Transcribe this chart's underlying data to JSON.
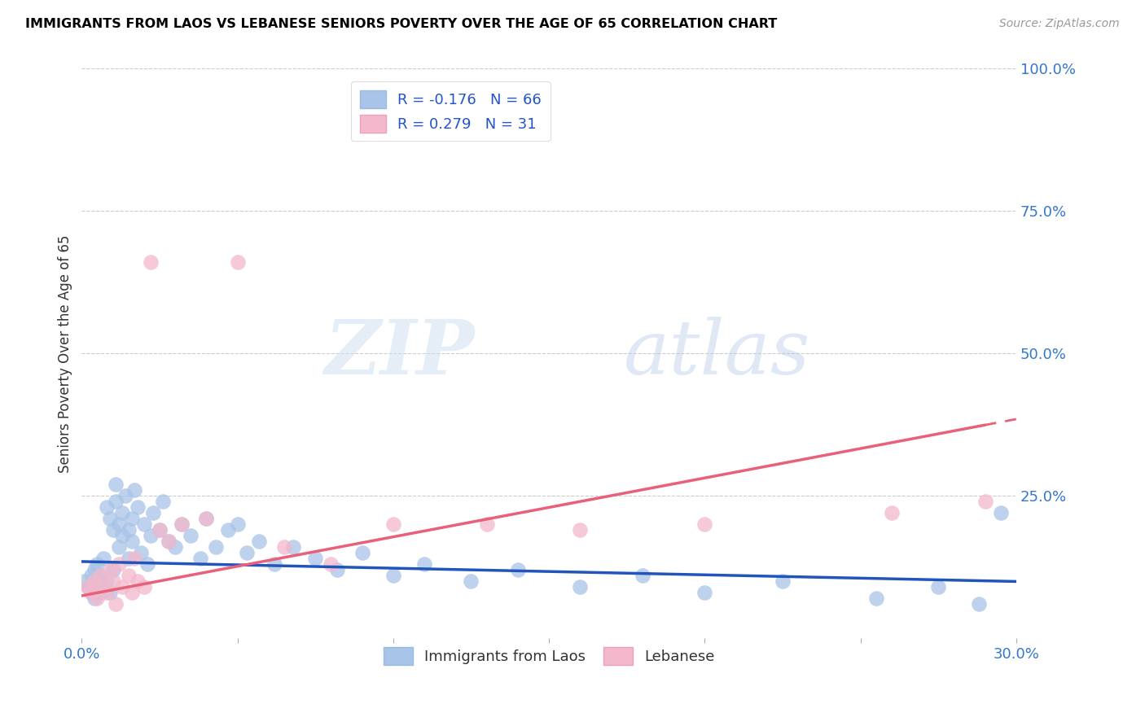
{
  "title": "IMMIGRANTS FROM LAOS VS LEBANESE SENIORS POVERTY OVER THE AGE OF 65 CORRELATION CHART",
  "source": "Source: ZipAtlas.com",
  "ylabel": "Seniors Poverty Over the Age of 65",
  "xlim": [
    0.0,
    0.3
  ],
  "ylim": [
    0.0,
    1.0
  ],
  "xticks": [
    0.0,
    0.05,
    0.1,
    0.15,
    0.2,
    0.25,
    0.3
  ],
  "xticklabels": [
    "0.0%",
    "",
    "",
    "",
    "",
    "",
    "30.0%"
  ],
  "yticks_right": [
    0.0,
    0.25,
    0.5,
    0.75,
    1.0
  ],
  "ytick_labels_right": [
    "",
    "25.0%",
    "50.0%",
    "75.0%",
    "100.0%"
  ],
  "R_laos": -0.176,
  "N_laos": 66,
  "R_lebanese": 0.279,
  "N_lebanese": 31,
  "color_laos": "#a8c4e8",
  "color_lebanese": "#f4b8cc",
  "trend_color_laos": "#2255bb",
  "trend_color_lebanese": "#e8607a",
  "legend_label_laos": "Immigrants from Laos",
  "legend_label_lebanese": "Lebanese",
  "watermark_zip": "ZIP",
  "watermark_atlas": "atlas",
  "laos_x": [
    0.001,
    0.002,
    0.003,
    0.003,
    0.004,
    0.004,
    0.005,
    0.005,
    0.006,
    0.006,
    0.007,
    0.007,
    0.008,
    0.008,
    0.009,
    0.009,
    0.01,
    0.01,
    0.011,
    0.011,
    0.012,
    0.012,
    0.013,
    0.013,
    0.014,
    0.015,
    0.015,
    0.016,
    0.016,
    0.017,
    0.018,
    0.019,
    0.02,
    0.021,
    0.022,
    0.023,
    0.025,
    0.026,
    0.028,
    0.03,
    0.032,
    0.035,
    0.038,
    0.04,
    0.043,
    0.047,
    0.05,
    0.053,
    0.057,
    0.062,
    0.068,
    0.075,
    0.082,
    0.09,
    0.1,
    0.11,
    0.125,
    0.14,
    0.16,
    0.18,
    0.2,
    0.225,
    0.255,
    0.275,
    0.288,
    0.295
  ],
  "laos_y": [
    0.1,
    0.09,
    0.11,
    0.08,
    0.12,
    0.07,
    0.1,
    0.13,
    0.08,
    0.11,
    0.09,
    0.14,
    0.1,
    0.23,
    0.08,
    0.21,
    0.12,
    0.19,
    0.24,
    0.27,
    0.16,
    0.2,
    0.18,
    0.22,
    0.25,
    0.19,
    0.14,
    0.21,
    0.17,
    0.26,
    0.23,
    0.15,
    0.2,
    0.13,
    0.18,
    0.22,
    0.19,
    0.24,
    0.17,
    0.16,
    0.2,
    0.18,
    0.14,
    0.21,
    0.16,
    0.19,
    0.2,
    0.15,
    0.17,
    0.13,
    0.16,
    0.14,
    0.12,
    0.15,
    0.11,
    0.13,
    0.1,
    0.12,
    0.09,
    0.11,
    0.08,
    0.1,
    0.07,
    0.09,
    0.06,
    0.22
  ],
  "leb_x": [
    0.002,
    0.003,
    0.004,
    0.005,
    0.006,
    0.007,
    0.008,
    0.009,
    0.01,
    0.011,
    0.012,
    0.013,
    0.015,
    0.016,
    0.017,
    0.018,
    0.02,
    0.022,
    0.025,
    0.028,
    0.032,
    0.04,
    0.05,
    0.065,
    0.08,
    0.1,
    0.13,
    0.16,
    0.2,
    0.26,
    0.29
  ],
  "leb_y": [
    0.09,
    0.08,
    0.1,
    0.07,
    0.11,
    0.09,
    0.08,
    0.12,
    0.1,
    0.06,
    0.13,
    0.09,
    0.11,
    0.08,
    0.14,
    0.1,
    0.09,
    0.66,
    0.19,
    0.17,
    0.2,
    0.21,
    0.66,
    0.16,
    0.13,
    0.2,
    0.2,
    0.19,
    0.2,
    0.22,
    0.24
  ],
  "trend_laos_x0": 0.0,
  "trend_laos_y0": 0.135,
  "trend_laos_x1": 0.3,
  "trend_laos_y1": 0.1,
  "trend_leb_x0": 0.0,
  "trend_leb_y0": 0.075,
  "trend_leb_x1": 0.3,
  "trend_leb_y1": 0.385,
  "trend_leb_solid_end": 0.29
}
